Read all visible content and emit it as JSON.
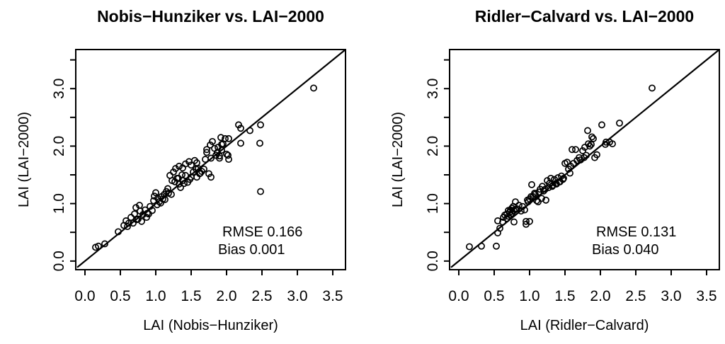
{
  "figure": {
    "background": "#ffffff",
    "foreground": "#000000"
  },
  "chart_data": [
    {
      "type": "scatter",
      "title": "Nobis−Hunziker vs. LAI−2000",
      "xlabel": "LAI (Nobis−Hunziker)",
      "ylabel": "LAI (LAI−2000)",
      "annotations": [
        "RMSE 0.166",
        "Bias 0.001"
      ],
      "xlim": [
        -0.13,
        3.68
      ],
      "ylim": [
        -0.15,
        3.68
      ],
      "x_tick_values": [
        0,
        0.5,
        1,
        1.5,
        2,
        2.5,
        3,
        3.5
      ],
      "x_tick_labels": [
        "0.0",
        "0.5",
        "1.0",
        "1.5",
        "2.0",
        "2.5",
        "3.0",
        "3.5"
      ],
      "y_tick_values": [
        0,
        0.5,
        1,
        1.5,
        2,
        2.5,
        3,
        3.5
      ],
      "y_tick_labeled_values": [
        0,
        1,
        2,
        3
      ],
      "y_tick_labels": [
        "0.0",
        "1.0",
        "2.0",
        "3.0"
      ],
      "reference_line": {
        "type": "1:1",
        "intercept": 0,
        "slope": 1
      },
      "grid": false,
      "legend": null,
      "points": [
        [
          0.15,
          0.24
        ],
        [
          0.19,
          0.26
        ],
        [
          0.28,
          0.3
        ],
        [
          0.47,
          0.51
        ],
        [
          0.55,
          0.62
        ],
        [
          0.58,
          0.7
        ],
        [
          0.6,
          0.6
        ],
        [
          0.62,
          0.66
        ],
        [
          0.65,
          0.76
        ],
        [
          0.68,
          0.66
        ],
        [
          0.7,
          0.82
        ],
        [
          0.72,
          0.93
        ],
        [
          0.73,
          0.72
        ],
        [
          0.75,
          0.73
        ],
        [
          0.77,
          0.97
        ],
        [
          0.78,
          0.87
        ],
        [
          0.8,
          0.69
        ],
        [
          0.82,
          0.81
        ],
        [
          0.85,
          0.89
        ],
        [
          0.87,
          0.76
        ],
        [
          0.88,
          0.83
        ],
        [
          0.9,
          0.82
        ],
        [
          0.92,
          0.95
        ],
        [
          0.95,
          0.88
        ],
        [
          0.97,
          1.05
        ],
        [
          0.98,
          1.13
        ],
        [
          1.0,
          1.19
        ],
        [
          1.02,
          0.98
        ],
        [
          1.03,
          1.09
        ],
        [
          1.05,
          1.03
        ],
        [
          1.07,
          1.01
        ],
        [
          1.08,
          1.12
        ],
        [
          1.1,
          1.08
        ],
        [
          1.12,
          1.16
        ],
        [
          1.13,
          1.07
        ],
        [
          1.15,
          1.21
        ],
        [
          1.17,
          1.26
        ],
        [
          1.18,
          1.18
        ],
        [
          1.2,
          1.49
        ],
        [
          1.22,
          1.16
        ],
        [
          1.23,
          1.4
        ],
        [
          1.25,
          1.55
        ],
        [
          1.27,
          1.38
        ],
        [
          1.28,
          1.61
        ],
        [
          1.3,
          1.44
        ],
        [
          1.32,
          1.44
        ],
        [
          1.33,
          1.34
        ],
        [
          1.33,
          1.65
        ],
        [
          1.35,
          1.28
        ],
        [
          1.37,
          1.5
        ],
        [
          1.38,
          1.4
        ],
        [
          1.38,
          1.62
        ],
        [
          1.4,
          1.35
        ],
        [
          1.42,
          1.49
        ],
        [
          1.42,
          1.69
        ],
        [
          1.45,
          1.37
        ],
        [
          1.47,
          1.73
        ],
        [
          1.48,
          1.42
        ],
        [
          1.5,
          1.46
        ],
        [
          1.5,
          1.67
        ],
        [
          1.53,
          1.55
        ],
        [
          1.55,
          1.75
        ],
        [
          1.57,
          1.6
        ],
        [
          1.58,
          1.46
        ],
        [
          1.58,
          1.71
        ],
        [
          1.6,
          1.61
        ],
        [
          1.62,
          1.52
        ],
        [
          1.63,
          1.53
        ],
        [
          1.65,
          1.56
        ],
        [
          1.68,
          1.6
        ],
        [
          1.7,
          1.77
        ],
        [
          1.72,
          1.89
        ],
        [
          1.72,
          1.94
        ],
        [
          1.75,
          1.52
        ],
        [
          1.77,
          2.02
        ],
        [
          1.78,
          1.46
        ],
        [
          1.78,
          1.79
        ],
        [
          1.8,
          2.08
        ],
        [
          1.83,
          1.96
        ],
        [
          1.85,
          1.84
        ],
        [
          1.87,
          1.89
        ],
        [
          1.88,
          1.98
        ],
        [
          1.9,
          1.79
        ],
        [
          1.9,
          1.83
        ],
        [
          1.92,
          2.15
        ],
        [
          1.93,
          1.93
        ],
        [
          1.93,
          2.03
        ],
        [
          1.95,
          2.04
        ],
        [
          1.98,
          2.13
        ],
        [
          2.0,
          1.86
        ],
        [
          2.02,
          1.84
        ],
        [
          2.03,
          1.77
        ],
        [
          2.03,
          2.13
        ],
        [
          2.17,
          2.37
        ],
        [
          2.2,
          2.05
        ],
        [
          2.2,
          2.31
        ],
        [
          2.33,
          2.27
        ],
        [
          2.47,
          2.05
        ],
        [
          2.48,
          2.37
        ],
        [
          2.48,
          1.21
        ],
        [
          3.23,
          3.01
        ]
      ]
    },
    {
      "type": "scatter",
      "title": "Ridler−Calvard vs. LAI−2000",
      "xlabel": "LAI (Ridler−Calvard)",
      "ylabel": "LAI (LAI−2000)",
      "annotations": [
        "RMSE 0.131",
        "Bias 0.040"
      ],
      "xlim": [
        -0.13,
        3.68
      ],
      "ylim": [
        -0.15,
        3.68
      ],
      "x_tick_values": [
        0,
        0.5,
        1,
        1.5,
        2,
        2.5,
        3,
        3.5
      ],
      "x_tick_labels": [
        "0.0",
        "0.5",
        "1.0",
        "1.5",
        "2.0",
        "2.5",
        "3.0",
        "3.5"
      ],
      "y_tick_values": [
        0,
        0.5,
        1,
        1.5,
        2,
        2.5,
        3,
        3.5
      ],
      "y_tick_labeled_values": [
        0,
        1,
        2,
        3
      ],
      "y_tick_labels": [
        "0.0",
        "1.0",
        "2.0",
        "3.0"
      ],
      "reference_line": {
        "type": "1:1",
        "intercept": 0,
        "slope": 1
      },
      "grid": false,
      "legend": null,
      "points": [
        [
          0.15,
          0.25
        ],
        [
          0.32,
          0.26
        ],
        [
          0.53,
          0.26
        ],
        [
          0.55,
          0.49
        ],
        [
          0.55,
          0.7
        ],
        [
          0.58,
          0.57
        ],
        [
          0.62,
          0.68
        ],
        [
          0.63,
          0.76
        ],
        [
          0.65,
          0.8
        ],
        [
          0.68,
          0.74
        ],
        [
          0.68,
          0.82
        ],
        [
          0.7,
          0.78
        ],
        [
          0.7,
          0.88
        ],
        [
          0.72,
          0.85
        ],
        [
          0.73,
          0.8
        ],
        [
          0.73,
          0.89
        ],
        [
          0.75,
          0.83
        ],
        [
          0.75,
          0.92
        ],
        [
          0.77,
          0.95
        ],
        [
          0.78,
          0.68
        ],
        [
          0.78,
          0.88
        ],
        [
          0.8,
          0.9
        ],
        [
          0.8,
          1.03
        ],
        [
          0.82,
          0.91
        ],
        [
          0.85,
          0.97
        ],
        [
          0.88,
          0.87
        ],
        [
          0.9,
          0.95
        ],
        [
          0.93,
          0.89
        ],
        [
          0.95,
          0.64
        ],
        [
          0.95,
          0.69
        ],
        [
          0.97,
          1.06
        ],
        [
          0.98,
          1.03
        ],
        [
          1.0,
          0.69
        ],
        [
          1.0,
          1.08
        ],
        [
          1.02,
          1.12
        ],
        [
          1.03,
          1.33
        ],
        [
          1.05,
          1.12
        ],
        [
          1.07,
          1.18
        ],
        [
          1.08,
          1.16
        ],
        [
          1.1,
          1.05
        ],
        [
          1.12,
          1.03
        ],
        [
          1.13,
          1.2
        ],
        [
          1.15,
          1.25
        ],
        [
          1.17,
          1.09
        ],
        [
          1.18,
          1.3
        ],
        [
          1.2,
          1.22
        ],
        [
          1.22,
          1.25
        ],
        [
          1.23,
          1.06
        ],
        [
          1.25,
          1.4
        ],
        [
          1.27,
          1.28
        ],
        [
          1.28,
          1.35
        ],
        [
          1.3,
          1.44
        ],
        [
          1.32,
          1.3
        ],
        [
          1.33,
          1.32
        ],
        [
          1.35,
          1.42
        ],
        [
          1.37,
          1.35
        ],
        [
          1.38,
          1.34
        ],
        [
          1.4,
          1.45
        ],
        [
          1.42,
          1.38
        ],
        [
          1.43,
          1.38
        ],
        [
          1.45,
          1.48
        ],
        [
          1.47,
          1.42
        ],
        [
          1.48,
          1.44
        ],
        [
          1.5,
          1.7
        ],
        [
          1.53,
          1.72
        ],
        [
          1.55,
          1.6
        ],
        [
          1.57,
          1.53
        ],
        [
          1.58,
          1.65
        ],
        [
          1.6,
          1.94
        ],
        [
          1.62,
          1.7
        ],
        [
          1.65,
          1.94
        ],
        [
          1.67,
          1.75
        ],
        [
          1.7,
          1.8
        ],
        [
          1.72,
          1.76
        ],
        [
          1.75,
          1.92
        ],
        [
          1.77,
          1.8
        ],
        [
          1.78,
          1.98
        ],
        [
          1.8,
          1.84
        ],
        [
          1.82,
          2.27
        ],
        [
          1.83,
          2.04
        ],
        [
          1.85,
          2.0
        ],
        [
          1.87,
          2.03
        ],
        [
          1.88,
          2.16
        ],
        [
          1.9,
          2.13
        ],
        [
          1.92,
          1.8
        ],
        [
          1.95,
          1.85
        ],
        [
          2.02,
          2.37
        ],
        [
          2.07,
          2.03
        ],
        [
          2.08,
          2.07
        ],
        [
          2.13,
          2.07
        ],
        [
          2.17,
          2.04
        ],
        [
          2.27,
          2.4
        ],
        [
          2.73,
          3.01
        ]
      ]
    }
  ]
}
